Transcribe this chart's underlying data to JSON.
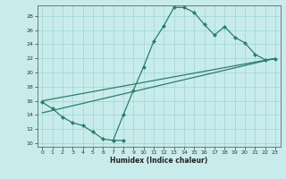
{
  "xlabel": "Humidex (Indice chaleur)",
  "xlim": [
    -0.5,
    23.5
  ],
  "ylim": [
    9.5,
    29.5
  ],
  "xticks": [
    0,
    1,
    2,
    3,
    4,
    5,
    6,
    7,
    8,
    9,
    10,
    11,
    12,
    13,
    14,
    15,
    16,
    17,
    18,
    19,
    20,
    21,
    22,
    23
  ],
  "yticks": [
    10,
    12,
    14,
    16,
    18,
    20,
    22,
    24,
    26,
    28
  ],
  "line_color": "#2d7d6e",
  "bg_color": "#c8ecec",
  "grid_color": "#a0d4d4",
  "curve1_x": [
    0,
    1,
    2,
    3,
    4,
    5,
    6,
    7,
    8
  ],
  "curve1_y": [
    15.8,
    14.9,
    13.7,
    12.9,
    12.5,
    11.6,
    10.6,
    10.4,
    10.4
  ],
  "curve2_x": [
    7,
    8,
    9,
    10,
    11,
    12,
    13,
    14,
    15,
    16,
    17,
    18,
    19,
    20,
    21,
    22,
    23
  ],
  "curve2_y": [
    10.4,
    14.0,
    17.5,
    20.8,
    24.4,
    26.6,
    29.2,
    29.2,
    28.5,
    26.8,
    25.3,
    26.5,
    25.0,
    24.2,
    22.6,
    21.8,
    21.9
  ],
  "trend1_x": [
    0,
    23
  ],
  "trend1_y": [
    16.0,
    22.0
  ],
  "trend2_x": [
    0,
    23
  ],
  "trend2_y": [
    14.3,
    22.0
  ]
}
